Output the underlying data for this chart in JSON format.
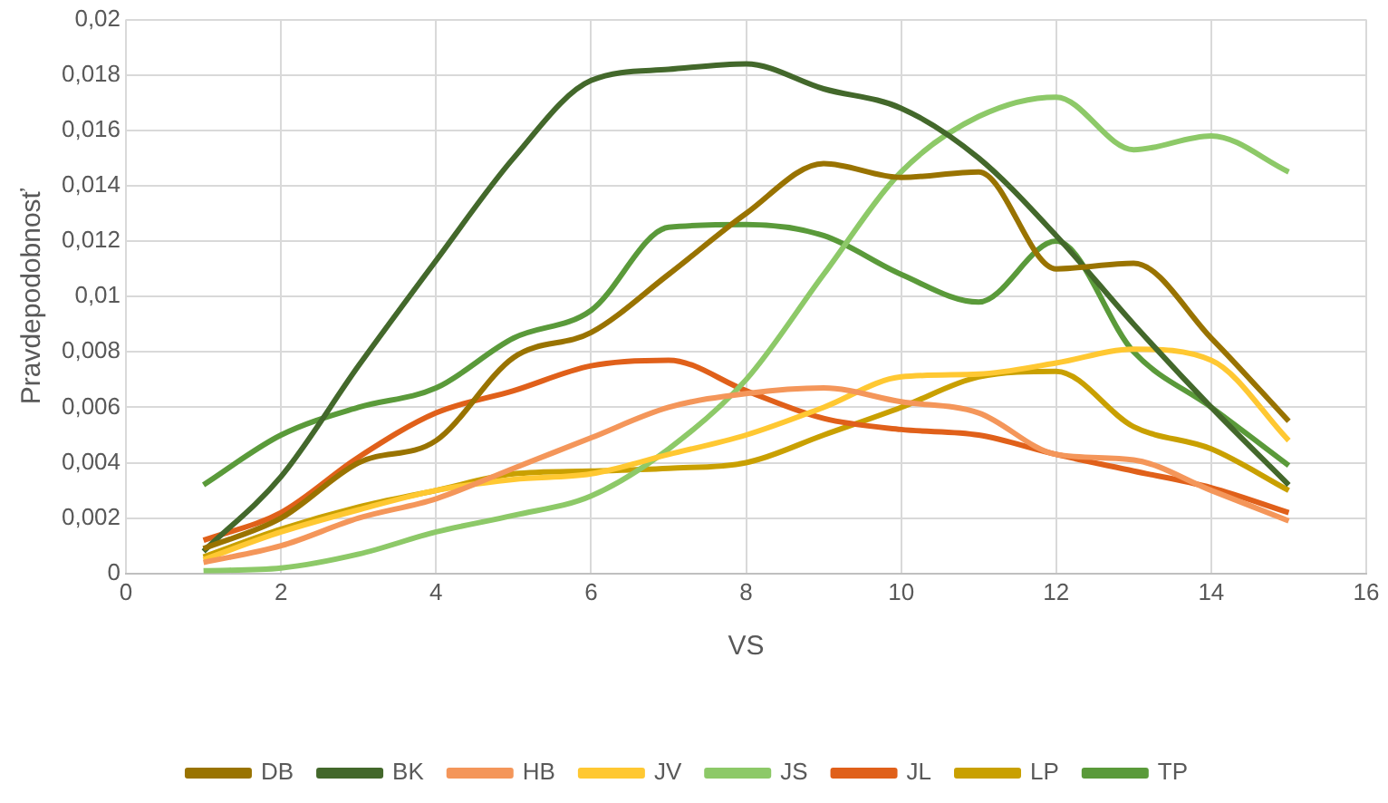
{
  "chart_data": {
    "type": "line",
    "xlabel": "VS",
    "ylabel": "Pravdepodobnosť",
    "x": [
      1,
      2,
      3,
      4,
      5,
      6,
      7,
      8,
      9,
      10,
      11,
      12,
      13,
      14,
      15
    ],
    "xlim": [
      0,
      16
    ],
    "xticks": [
      0,
      2,
      4,
      6,
      8,
      10,
      12,
      14,
      16
    ],
    "ylim": [
      0,
      0.02
    ],
    "yticks": [
      {
        "value": 0,
        "label": "0"
      },
      {
        "value": 0.002,
        "label": "0,002"
      },
      {
        "value": 0.004,
        "label": "0,004"
      },
      {
        "value": 0.006,
        "label": "0,006"
      },
      {
        "value": 0.008,
        "label": "0,008"
      },
      {
        "value": 0.01,
        "label": "0,01"
      },
      {
        "value": 0.012,
        "label": "0,012"
      },
      {
        "value": 0.014,
        "label": "0,014"
      },
      {
        "value": 0.016,
        "label": "0,016"
      },
      {
        "value": 0.018,
        "label": "0,018"
      },
      {
        "value": 0.02,
        "label": "0,02"
      }
    ],
    "grid": true,
    "legend": "bottom",
    "marker": "none",
    "line_style": "solid",
    "series": [
      {
        "name": "DB",
        "color": "#997300",
        "values": [
          0.0009,
          0.002,
          0.004,
          0.0048,
          0.0078,
          0.0087,
          0.0108,
          0.013,
          0.0148,
          0.0143,
          0.0145,
          0.011,
          0.0112,
          0.0085,
          0.0055
        ]
      },
      {
        "name": "BK",
        "color": "#43682b",
        "values": [
          0.0008,
          0.0035,
          0.0075,
          0.0113,
          0.015,
          0.0178,
          0.0182,
          0.0184,
          0.0175,
          0.0168,
          0.015,
          0.0122,
          0.009,
          0.006,
          0.0032
        ]
      },
      {
        "name": "HB",
        "color": "#f4965a",
        "values": [
          0.0004,
          0.001,
          0.002,
          0.0027,
          0.0038,
          0.0049,
          0.006,
          0.0065,
          0.0067,
          0.0062,
          0.0058,
          0.0043,
          0.0041,
          0.003,
          0.0019
        ]
      },
      {
        "name": "JV",
        "color": "#ffc832",
        "values": [
          0.0005,
          0.0015,
          0.0023,
          0.003,
          0.0034,
          0.0036,
          0.0043,
          0.005,
          0.006,
          0.0071,
          0.0072,
          0.0076,
          0.0081,
          0.0077,
          0.0048
        ]
      },
      {
        "name": "JS",
        "color": "#8dc968",
        "values": [
          0.0001,
          0.0002,
          0.0007,
          0.0015,
          0.0021,
          0.0028,
          0.0045,
          0.007,
          0.0108,
          0.0145,
          0.0165,
          0.0172,
          0.0153,
          0.0158,
          0.0145
        ]
      },
      {
        "name": "JL",
        "color": "#e0601a",
        "values": [
          0.0012,
          0.0022,
          0.0042,
          0.0058,
          0.0066,
          0.0075,
          0.0077,
          0.0066,
          0.0056,
          0.0052,
          0.005,
          0.0043,
          0.0037,
          0.0031,
          0.0022
        ]
      },
      {
        "name": "LP",
        "color": "#c9a000",
        "values": [
          0.0006,
          0.0016,
          0.0024,
          0.003,
          0.0036,
          0.0037,
          0.0038,
          0.004,
          0.005,
          0.006,
          0.0071,
          0.0073,
          0.0053,
          0.0045,
          0.003
        ]
      },
      {
        "name": "TP",
        "color": "#5a9a3a",
        "values": [
          0.0032,
          0.005,
          0.006,
          0.0067,
          0.0085,
          0.0095,
          0.0125,
          0.0126,
          0.0122,
          0.0108,
          0.0098,
          0.012,
          0.008,
          0.006,
          0.0039
        ]
      }
    ]
  }
}
